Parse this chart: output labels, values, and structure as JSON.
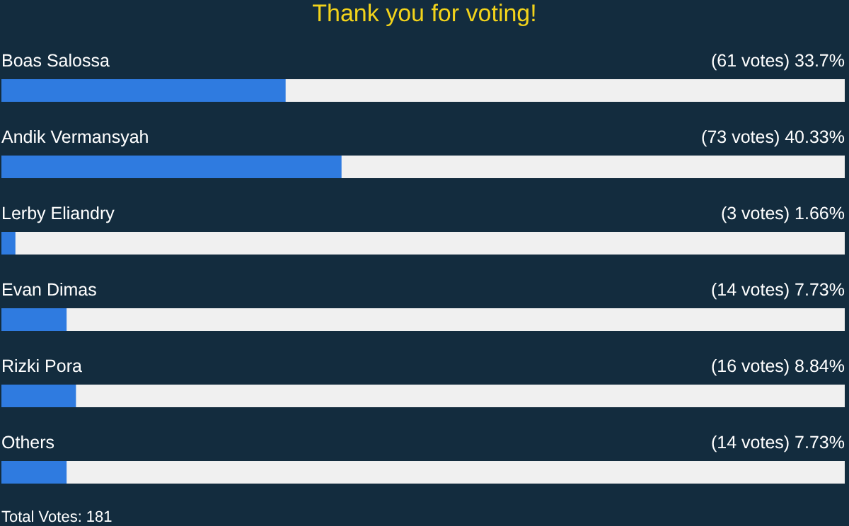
{
  "chart_data": {
    "type": "bar",
    "orientation": "horizontal",
    "title": "Thank you for voting!",
    "categories": [
      "Boas Salossa",
      "Andik Vermansyah",
      "Lerby Eliandry",
      "Evan Dimas",
      "Rizki Pora",
      "Others"
    ],
    "values": [
      33.7,
      40.33,
      1.66,
      7.73,
      8.84,
      7.73
    ],
    "value_labels": [
      "(61 votes) 33.7%",
      "(73 votes) 40.33%",
      "(3 votes) 1.66%",
      "(14 votes) 7.73%",
      "(16 votes) 8.84%",
      "(14 votes) 7.73%"
    ],
    "color": "#2f7be0",
    "xlim": [
      0,
      100
    ],
    "tick_labels": false,
    "annotations": [
      "Total Votes: 181"
    ]
  }
}
